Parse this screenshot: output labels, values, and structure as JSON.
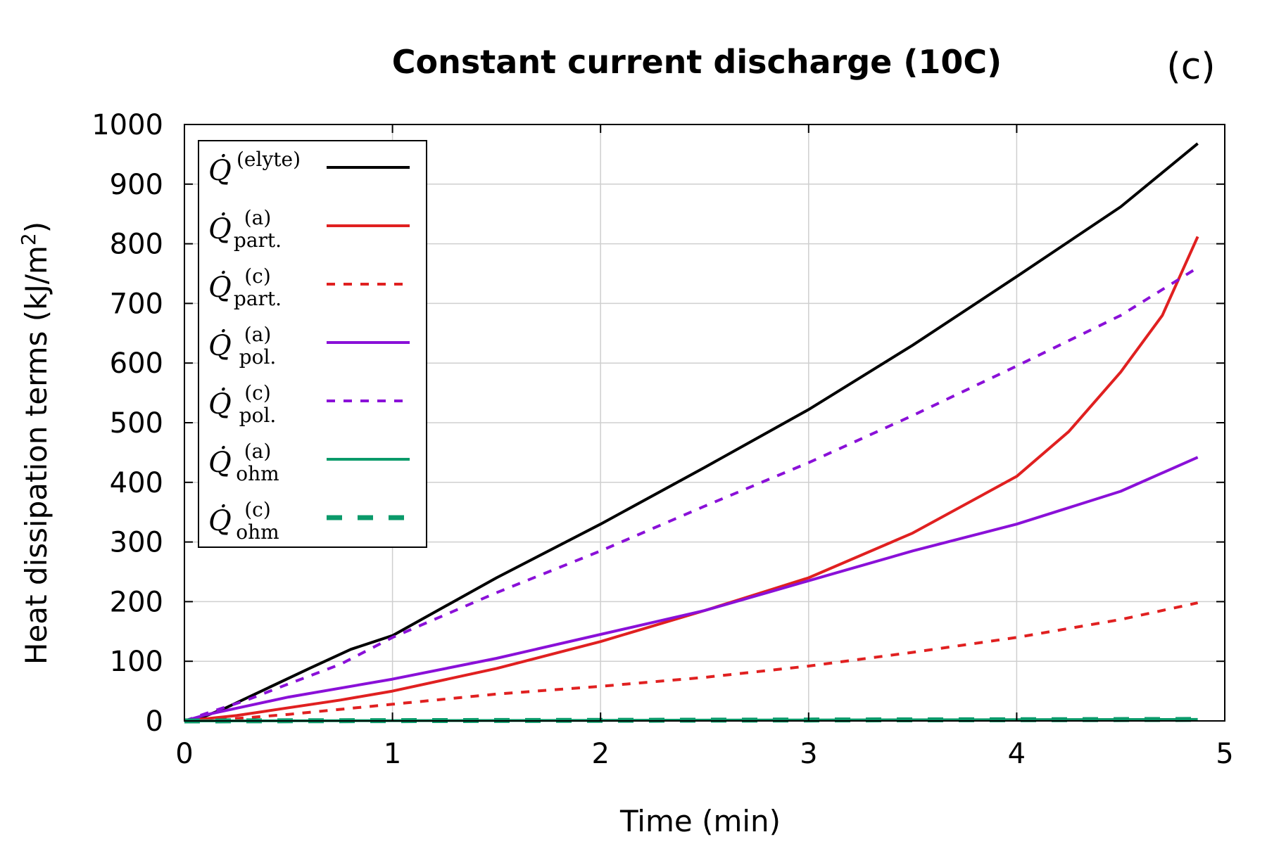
{
  "chart_data": {
    "type": "line",
    "title": "Constant current discharge (10C)",
    "panel_label": "(c)",
    "xlabel": "Time (min)",
    "ylabel": "Heat dissipation terms (kJ/m",
    "ylabel_sup": "2",
    "ylabel_close": ")",
    "xlim": [
      0,
      5
    ],
    "ylim": [
      0,
      1000
    ],
    "xticks": [
      0,
      1,
      2,
      3,
      4,
      5
    ],
    "yticks": [
      0,
      100,
      200,
      300,
      400,
      500,
      600,
      700,
      800,
      900,
      1000
    ],
    "grid": true,
    "legend_position": "top-left",
    "series": [
      {
        "name": "elyte",
        "symbol": "Q̇",
        "sup": "(elyte)",
        "sub": "",
        "color": "#000000",
        "dash": "solid",
        "width": 4,
        "x": [
          0,
          0.1,
          0.2,
          0.4,
          0.6,
          0.8,
          1,
          1.5,
          2,
          2.5,
          3,
          3.5,
          4,
          4.5,
          4.87
        ],
        "y": [
          0,
          8,
          22,
          55,
          88,
          120,
          143,
          240,
          330,
          425,
          522,
          630,
          745,
          862,
          968
        ]
      },
      {
        "name": "part-a",
        "symbol": "Q̇",
        "sup": "(a)",
        "sub": "part.",
        "color": "#e02020",
        "dash": "solid",
        "width": 4,
        "x": [
          0,
          0.25,
          0.5,
          0.75,
          1,
          1.5,
          2,
          2.5,
          2.8,
          3,
          3.5,
          4,
          4.25,
          4.5,
          4.7,
          4.87
        ],
        "y": [
          0,
          9,
          22,
          35,
          50,
          88,
          133,
          185,
          218,
          240,
          315,
          410,
          485,
          585,
          680,
          812
        ]
      },
      {
        "name": "part-c",
        "symbol": "Q̇",
        "sup": "(c)",
        "sub": "part.",
        "color": "#e02020",
        "dash": "dotted",
        "width": 4,
        "x": [
          0,
          0.25,
          0.5,
          1,
          1.5,
          2,
          2.5,
          3,
          3.5,
          4,
          4.5,
          4.87
        ],
        "y": [
          0,
          4,
          11,
          28,
          45,
          58,
          73,
          92,
          115,
          140,
          170,
          198
        ]
      },
      {
        "name": "pol-a",
        "symbol": "Q̇",
        "sup": "(a)",
        "sub": "pol.",
        "color": "#8a10d8",
        "dash": "solid",
        "width": 4,
        "x": [
          0,
          0.1,
          0.3,
          0.5,
          1,
          1.5,
          2,
          2.5,
          2.8,
          3,
          3.5,
          4,
          4.5,
          4.87
        ],
        "y": [
          0,
          10,
          25,
          40,
          70,
          105,
          145,
          185,
          215,
          235,
          285,
          330,
          385,
          442
        ]
      },
      {
        "name": "pol-c",
        "symbol": "Q̇",
        "sup": "(c)",
        "sub": "pol.",
        "color": "#8a10d8",
        "dash": "dotted",
        "width": 4,
        "x": [
          0,
          0.1,
          0.3,
          0.5,
          0.75,
          1,
          1.5,
          2,
          2.5,
          3,
          3.5,
          4,
          4.5,
          4.87
        ],
        "y": [
          0,
          12,
          35,
          62,
          95,
          140,
          215,
          285,
          360,
          433,
          512,
          595,
          680,
          760
        ]
      },
      {
        "name": "ohm-a",
        "symbol": "Q̇",
        "sup": "(a)",
        "sub": "ohm",
        "color": "#0a9a6a",
        "dash": "solid",
        "width": 4,
        "x": [
          0,
          1,
          2,
          3,
          4,
          4.87
        ],
        "y": [
          0,
          0.5,
          1,
          1.5,
          2,
          2.5
        ]
      },
      {
        "name": "ohm-c",
        "symbol": "Q̇",
        "sup": "(c)",
        "sub": "ohm",
        "color": "#0a9a6a",
        "dash": "dashed",
        "width": 7,
        "x": [
          0,
          1,
          2,
          3,
          4,
          4.87
        ],
        "y": [
          0,
          0.5,
          1,
          1.5,
          2,
          2.5
        ]
      }
    ]
  }
}
